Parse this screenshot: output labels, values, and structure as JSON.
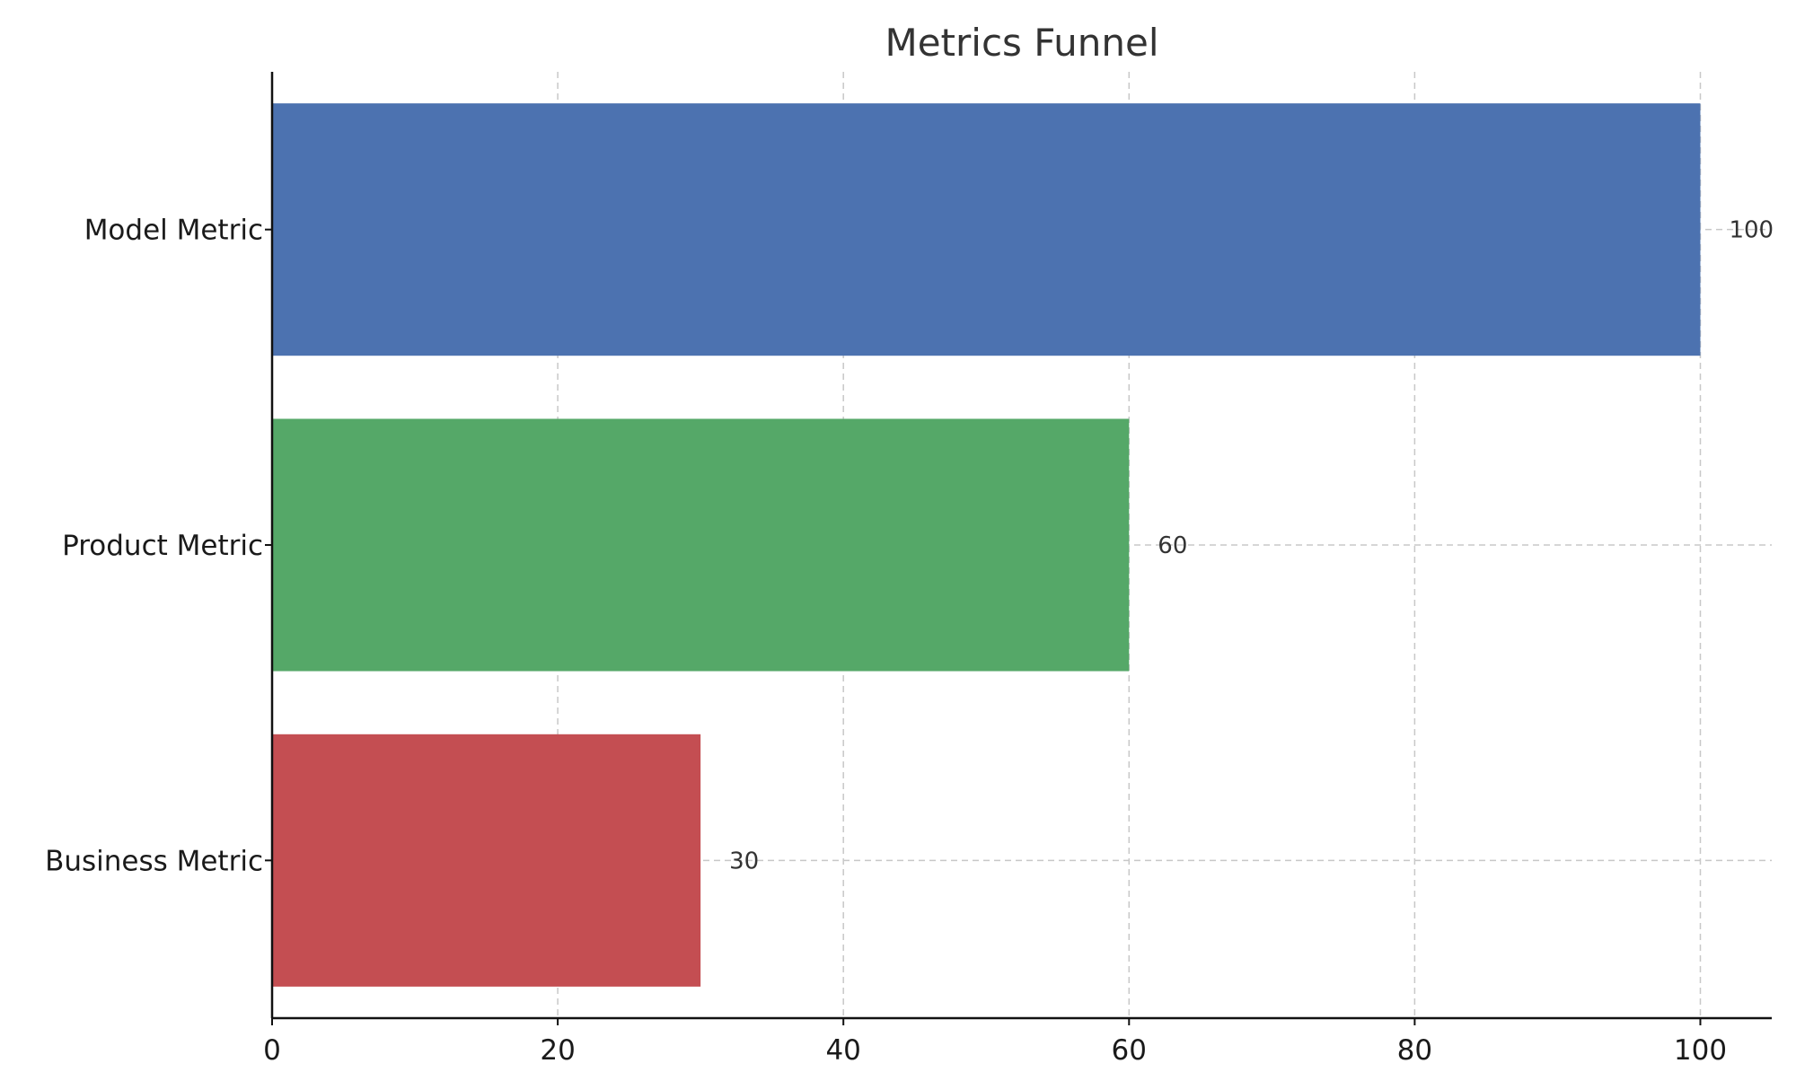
{
  "chart_data": {
    "type": "bar",
    "orientation": "horizontal",
    "title": "Metrics Funnel",
    "xlabel": "",
    "ylabel": "",
    "categories": [
      "Model Metric",
      "Product Metric",
      "Business Metric"
    ],
    "values": [
      100,
      60,
      30
    ],
    "colors": [
      "#4c72b0",
      "#55a868",
      "#c44e52"
    ],
    "data_labels": [
      "100",
      "60",
      "30"
    ],
    "xlim": [
      0,
      105
    ],
    "x_ticks": [
      0,
      20,
      40,
      60,
      80,
      100
    ],
    "x_tick_labels": [
      "0",
      "20",
      "40",
      "60",
      "80",
      "100"
    ],
    "grid": true,
    "legend": "none"
  }
}
